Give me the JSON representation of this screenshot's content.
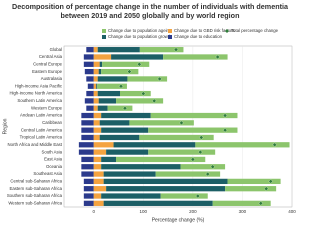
{
  "chart_data": {
    "type": "stacked_bar_horizontal",
    "title": "Decomposition of percentage change in the number of individuals with dementia between 2019 and 2050 globally and by world region",
    "xlabel": "Percentage change (%)",
    "ylabel": "Region",
    "categories": [
      "Global",
      "Central Asia",
      "Central Europe",
      "Eastern Europe",
      "Australasia",
      "High-income Asia Pacific",
      "High-income North America",
      "Southern Latin America",
      "Western Europe",
      "Andean Latin America",
      "Caribbean",
      "Central Latin America",
      "Tropical Latin America",
      "North Africa and Middle East",
      "South Asia",
      "East Asia",
      "Oceania",
      "Southeast Asia",
      "Central sub-Saharan Africa",
      "Eastern sub-Saharan Africa",
      "Southern sub-Saharan Africa",
      "Western sub-Saharan Africa"
    ],
    "series": [
      {
        "name": "Change due to education",
        "color": "#2b3a8c",
        "values": [
          -15,
          -20,
          -20,
          -18,
          -15,
          -12,
          -15,
          -18,
          -15,
          -25,
          -25,
          -25,
          -25,
          -30,
          -30,
          -25,
          -25,
          -25,
          -20,
          -20,
          -20,
          -20
        ]
      },
      {
        "name": "Change due to GBD risk factors",
        "color": "#f4a340",
        "values": [
          8,
          35,
          12,
          10,
          8,
          5,
          8,
          10,
          8,
          15,
          12,
          15,
          12,
          40,
          25,
          15,
          15,
          20,
          20,
          25,
          15,
          20
        ]
      },
      {
        "name": "Change due to population growth",
        "color": "#1c5f66",
        "values": [
          85,
          105,
          5,
          5,
          60,
          2,
          45,
          35,
          20,
          100,
          60,
          95,
          80,
          165,
          85,
          30,
          160,
          105,
          250,
          240,
          120,
          220
        ]
      },
      {
        "name": "Change due to population ageing",
        "color": "#8cc56c",
        "values": [
          88,
          130,
          95,
          75,
          80,
          60,
          62,
          95,
          50,
          175,
          130,
          180,
          150,
          190,
          135,
          180,
          90,
          130,
          107,
          103,
          95,
          117
        ]
      }
    ],
    "total": {
      "name": "Total percentage change",
      "color": "#2f7d3a",
      "values": [
        166,
        250,
        92,
        72,
        133,
        55,
        100,
        122,
        63,
        265,
        177,
        265,
        217,
        365,
        215,
        200,
        240,
        230,
        357,
        348,
        210,
        337
      ]
    },
    "xlim": [
      -60,
      400
    ],
    "xticks": [
      0,
      100,
      200,
      300,
      400
    ],
    "grid": true
  }
}
